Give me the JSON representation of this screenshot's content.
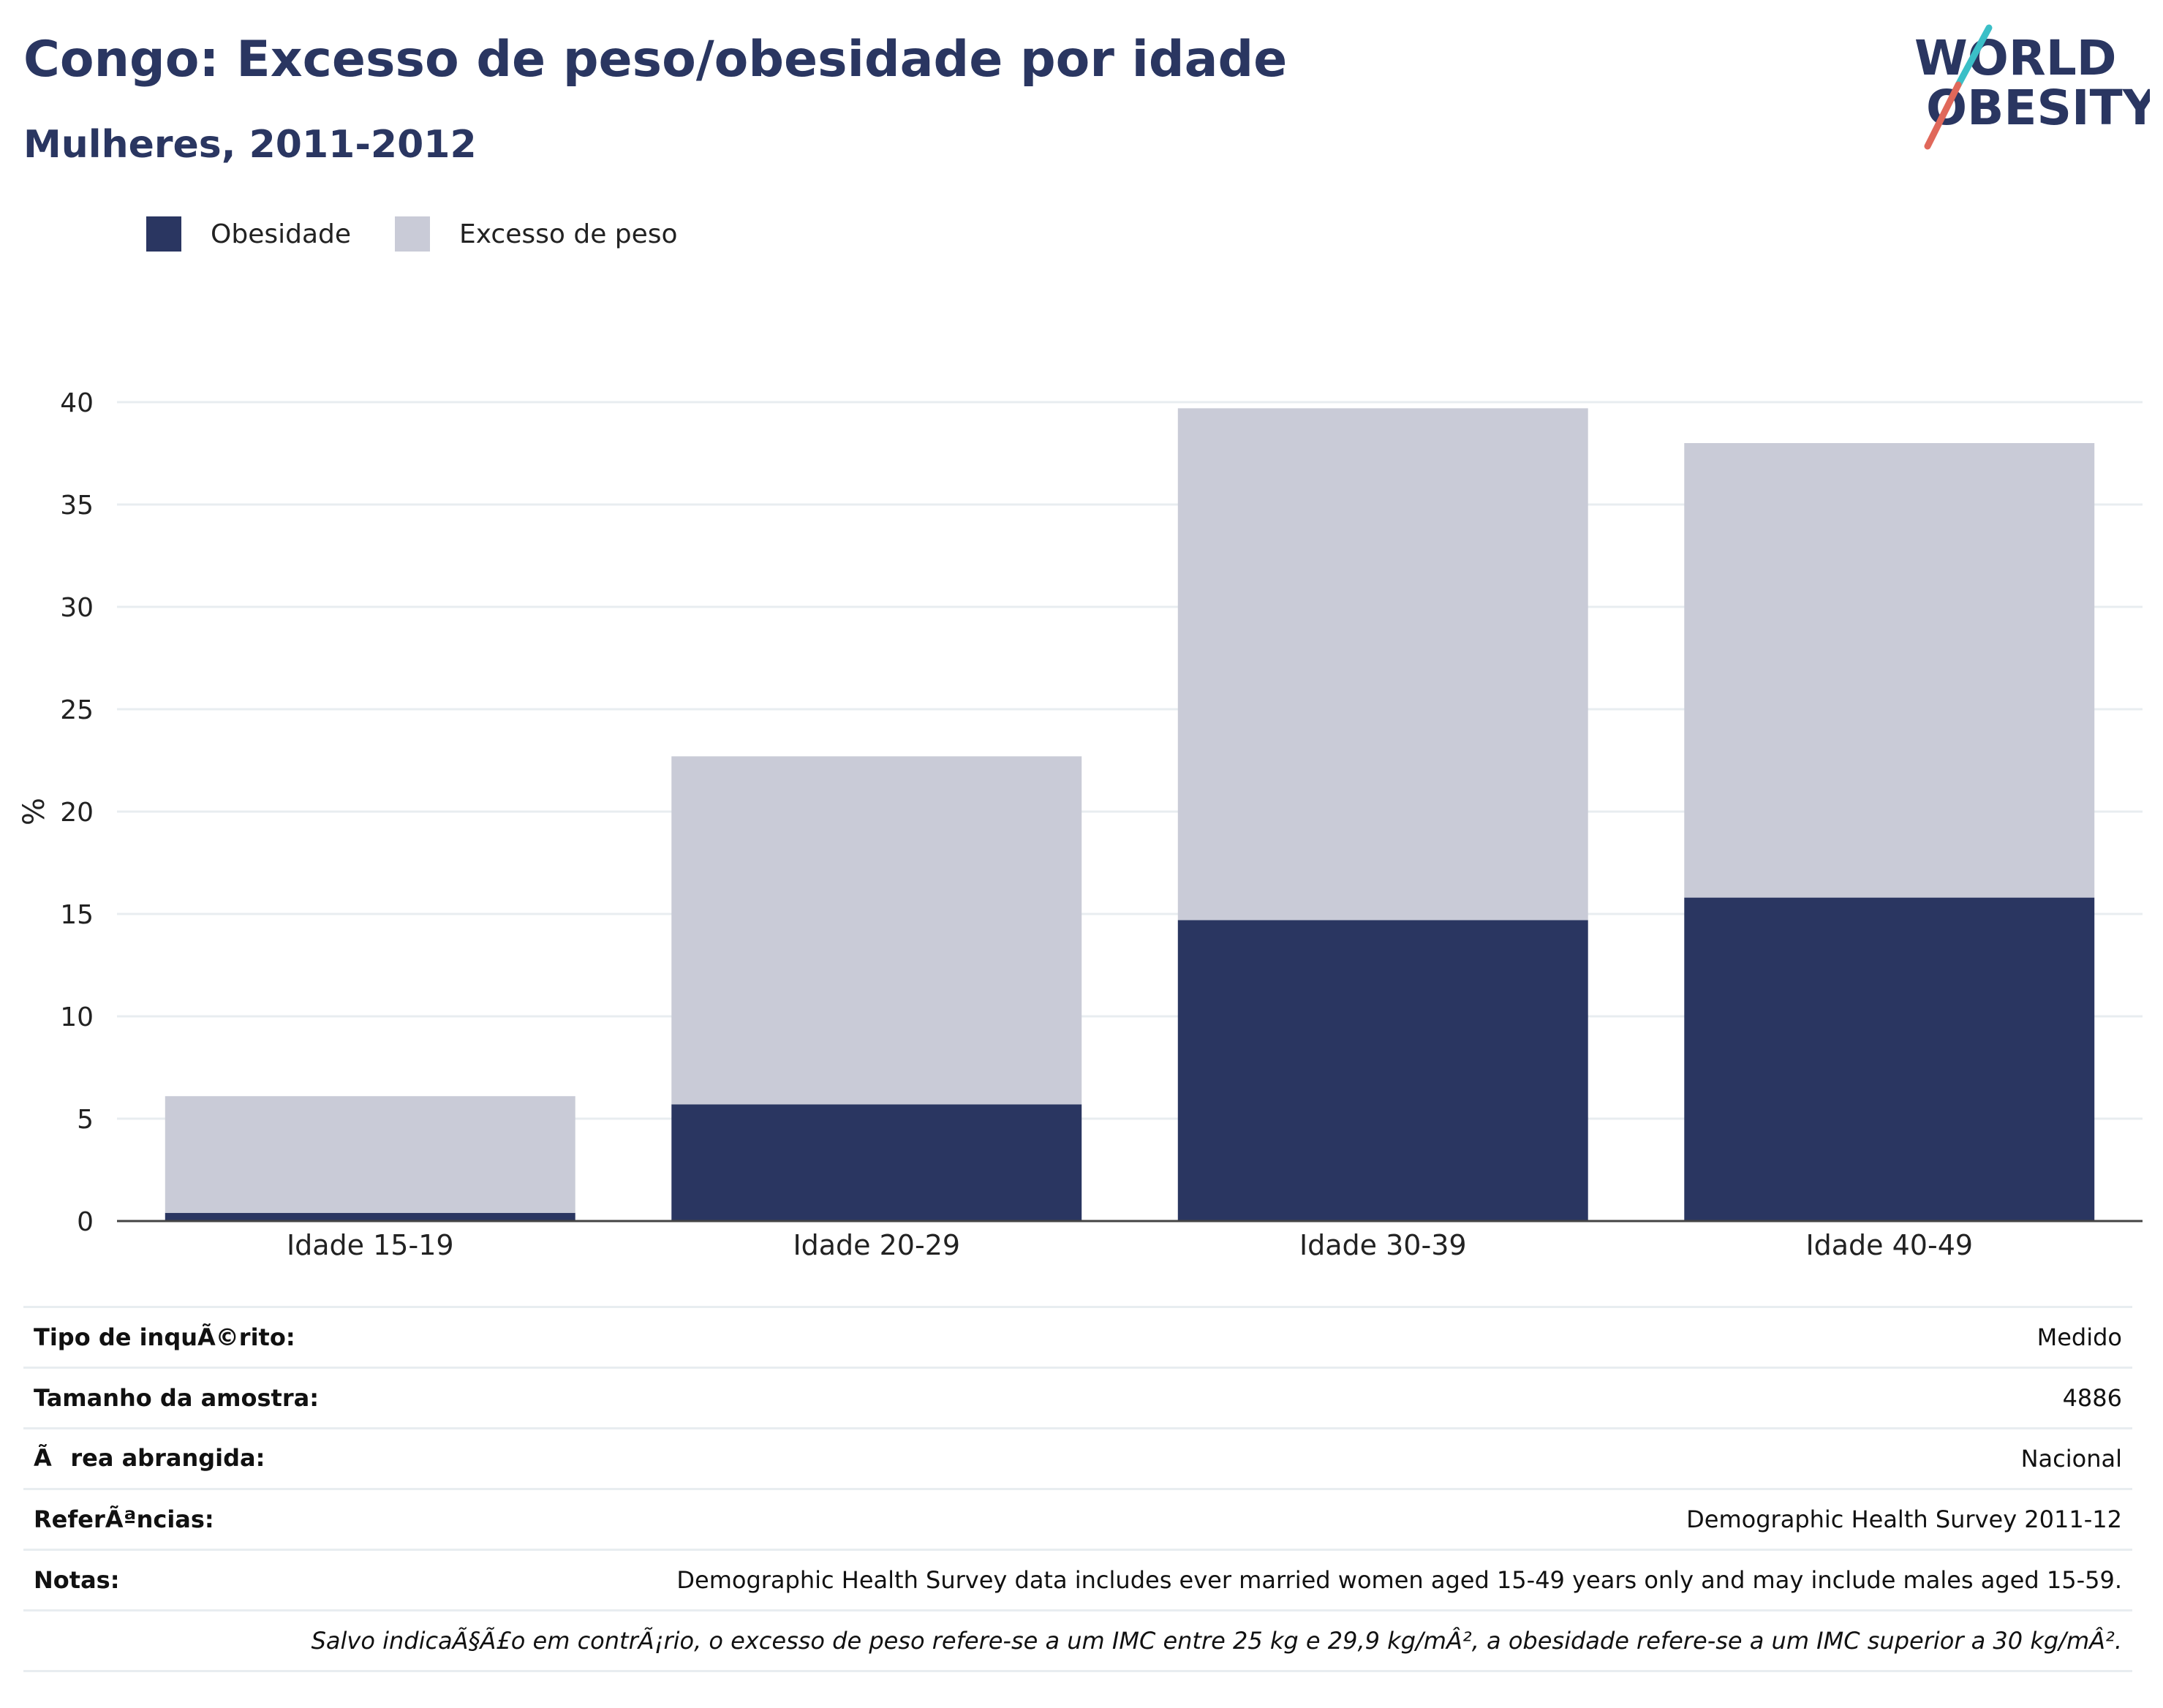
{
  "header": {
    "title": "Congo: Excesso de peso/obesidade por idade",
    "subtitle": "Mulheres, 2011-2012"
  },
  "logo": {
    "line1": "WORLD",
    "line2": "OBESITY",
    "accent_teal": "#3bbfc7",
    "accent_coral": "#e0685a",
    "text_color": "#2a3661"
  },
  "colors": {
    "obesity": "#2a3661",
    "overweight": "#c9cbd7",
    "title": "#2a3661"
  },
  "chart_data": {
    "type": "bar",
    "stacked": true,
    "categories": [
      "Idade 15-19",
      "Idade 20-29",
      "Idade 30-39",
      "Idade 40-49"
    ],
    "series": [
      {
        "name": "Obesidade",
        "values": [
          0.4,
          5.7,
          14.7,
          15.8
        ],
        "color": "#2a3661"
      },
      {
        "name": "Excesso de peso",
        "values": [
          5.7,
          17.0,
          25.0,
          22.2
        ],
        "color": "#c9cbd7"
      }
    ],
    "ylabel": "%",
    "ylim": [
      0,
      40
    ],
    "yticks": [
      0,
      5,
      10,
      15,
      20,
      25,
      30,
      35,
      40
    ],
    "grid": true,
    "legend_position": "top-left"
  },
  "info": {
    "rows": [
      {
        "label": "Tipo de inquÃ©rito:",
        "value": "Medido"
      },
      {
        "label": "Tamanho da amostra:",
        "value": "4886"
      },
      {
        "label": "Ãrea abrangida:",
        "value": "Nacional"
      },
      {
        "label": "ReferÃªncias:",
        "value": "Demographic Health Survey 2011-12"
      },
      {
        "label": "Notas:",
        "value": "Demographic Health Survey data includes ever married women aged 15-49 years only and may include males aged 15-59."
      }
    ],
    "footnote": "Salvo indicaÃ§Ã£o em contrÃ¡rio, o excesso de peso refere-se a um IMC entre 25 kg e 29,9 kg/mÂ², a obesidade refere-se a um IMC superior a 30 kg/mÂ²."
  }
}
